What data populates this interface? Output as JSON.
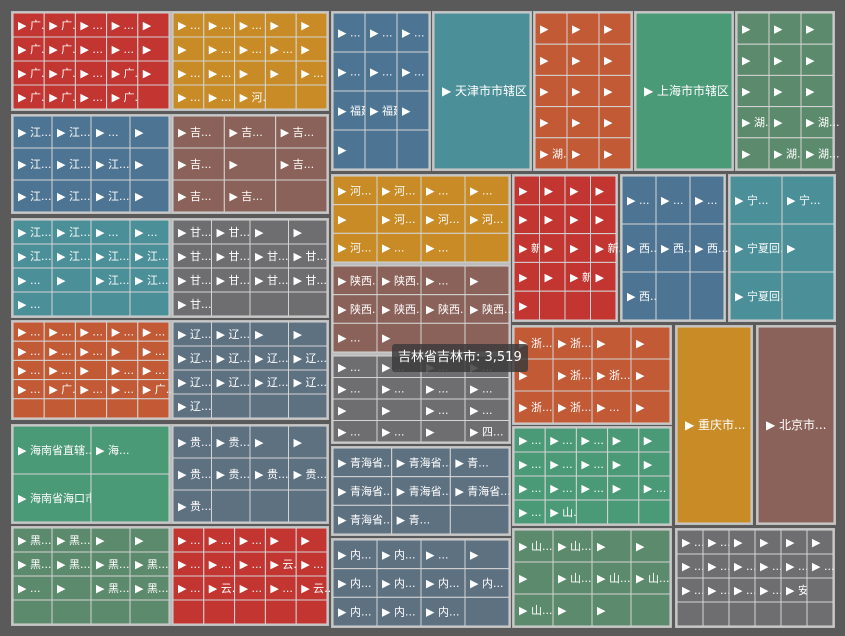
{
  "chart_data": {
    "type": "treemap",
    "tooltip": "吉林省吉林市: 3,519",
    "colors": {
      "red": "#c23531",
      "gold": "#c98b25",
      "blue": "#4d7493",
      "teal": "#4b8f98",
      "green": "#4b9a77",
      "sage": "#5c8a6c",
      "orange": "#c25a35",
      "brown": "#8a6259",
      "grey": "#6e6e70",
      "slate": "#5e7181"
    },
    "regions": [
      {
        "color": "red",
        "labels": [
          "▶ 广...",
          "▶ 广...",
          "▶ ...",
          "▶ ...",
          "▶",
          "▶ 广...",
          "▶ 广...",
          "▶ ...",
          "▶ ...",
          "▶",
          "▶ 广...",
          "▶ 广...",
          "▶ ...",
          "▶ 广...",
          "▶",
          "▶ 广...",
          "▶ 广...",
          "▶ ...",
          "▶ 广..."
        ]
      },
      {
        "color": "gold",
        "labels": [
          "▶ ...",
          "▶ ...",
          "▶ ...",
          "▶",
          "▶",
          "▶",
          "▶ ...",
          "▶ ...",
          "▶ ...",
          "▶",
          "▶ ...",
          "▶ ...",
          "▶",
          "▶",
          "▶ ...",
          "▶ ...",
          "▶ ...",
          "▶ 河..."
        ]
      },
      {
        "color": "blue",
        "labels": [
          "▶ ...",
          "▶ ...",
          "▶ ...",
          "▶ ...",
          "▶ ...",
          "▶ ...",
          "▶ 福建...",
          "▶ 福建...",
          "▶",
          "▶"
        ]
      },
      {
        "color": "teal",
        "labels": [
          "▶ 天津市市辖区"
        ]
      },
      {
        "color": "orange",
        "labels": [
          "▶",
          "▶",
          "▶",
          "▶",
          "▶",
          "▶",
          "▶",
          "▶",
          "▶",
          "▶",
          "▶",
          "▶",
          "▶ 湖...",
          "▶",
          "▶",
          "▶ 湖...",
          "▶",
          "▶",
          "▶ 湖...",
          "▶ 湖..."
        ]
      },
      {
        "color": "green",
        "labels": [
          "▶ 上海市市辖区"
        ]
      },
      {
        "color": "sage",
        "labels": [
          "▶",
          "▶",
          "▶",
          "▶",
          "▶",
          "▶",
          "▶",
          "▶",
          "▶",
          "▶ 湖...",
          "▶",
          "▶ 湖...",
          "▶",
          "▶ 湖...",
          "▶ 湖..."
        ]
      },
      {
        "color": "blue",
        "labels": [
          "▶ 江...",
          "▶ 江...",
          "▶ ...",
          "▶",
          "▶ 江...",
          "▶ 江...",
          "▶ 江...",
          "▶",
          "▶ 江...",
          "▶ 江...",
          "▶ 江...",
          "▶"
        ]
      },
      {
        "color": "brown",
        "labels": [
          "▶ 吉...",
          "▶ 吉...",
          "▶ 吉...",
          "▶ 吉...",
          "▶",
          "▶ 吉...",
          "▶ 吉...",
          "▶ 吉..."
        ]
      },
      {
        "color": "gold",
        "labels": [
          "▶ 河...",
          "▶ 河...",
          "▶ ...",
          "▶ ...",
          "▶",
          "▶ 河...",
          "▶ 河...",
          "▶ 河...",
          "▶ 河...",
          "▶ ...",
          "▶ ..."
        ]
      },
      {
        "color": "red",
        "labels": [
          "▶",
          "▶",
          "▶",
          "▶",
          "▶",
          "▶",
          "▶",
          "▶",
          "▶ 新...",
          "▶",
          "▶",
          "▶ 新...",
          "▶",
          "▶",
          "▶ 新...",
          "▶",
          "▶"
        ]
      },
      {
        "color": "blue",
        "labels": [
          "▶ ...",
          "▶ ...",
          "▶ ...",
          "▶ 西...",
          "▶ 西...",
          "▶ 西...",
          "▶ 西..."
        ]
      },
      {
        "color": "teal",
        "labels": [
          "▶ 宁...",
          "▶ 宁...",
          "▶ 宁夏回...",
          "▶",
          "▶ 宁夏回..."
        ]
      },
      {
        "color": "teal",
        "labels": [
          "▶ 江...",
          "▶ 江...",
          "▶ ...",
          "▶ ...",
          "▶ 江...",
          "▶ 江...",
          "▶ 江...",
          "▶ 江...",
          "▶ ...",
          "▶",
          "▶ 江...",
          "▶ 江...",
          "▶ ..."
        ]
      },
      {
        "color": "grey",
        "labels": [
          "▶ 甘...",
          "▶ 甘...",
          "▶",
          "▶",
          "▶ 甘...",
          "▶ 甘...",
          "▶ 甘...",
          "▶ 甘...",
          "▶ 甘...",
          "▶ 甘...",
          "▶ 甘...",
          "▶ 甘...",
          "▶ 甘..."
        ]
      },
      {
        "color": "brown",
        "labels": [
          "▶ 陕西...",
          "▶ 陕西...",
          "▶ ...",
          "▶",
          "▶ 陕西...",
          "▶ 陕西...",
          "▶ 陕西...",
          "▶ 陕西...",
          "▶ ...",
          "▶"
        ]
      },
      {
        "color": "grey",
        "labels": [
          "▶ ...",
          "▶ ...",
          "▶ ...",
          "▶ ...",
          "▶ ...",
          "▶ ...",
          "▶ ...",
          "▶ ...",
          "▶",
          "▶",
          "▶ ...",
          "▶ ...",
          "▶ ...",
          "▶ ...",
          "▶",
          "▶ 四..."
        ]
      },
      {
        "color": "orange",
        "labels": [
          "▶ 浙...",
          "▶ 浙...",
          "▶",
          "▶",
          "▶",
          "▶ 浙...",
          "▶ 浙...",
          "▶",
          "▶ 浙...",
          "▶ 浙...",
          "▶ ...",
          "▶"
        ]
      },
      {
        "color": "gold",
        "labels": [
          "▶ 重庆市..."
        ]
      },
      {
        "color": "brown",
        "labels": [
          "▶ 北京市..."
        ]
      },
      {
        "color": "orange",
        "labels": [
          "▶ ...",
          "▶ ...",
          "▶ ...",
          "▶ ...",
          "▶ ...",
          "▶ ...",
          "▶ ...",
          "▶ ...",
          "▶",
          "▶ ...",
          "▶ ...",
          "▶ ...",
          "▶",
          "▶ ...",
          "▶ ...",
          "▶ ...",
          "▶ 广...",
          "▶ ...",
          "▶ ...",
          "▶ 广..."
        ]
      },
      {
        "color": "slate",
        "labels": [
          "▶ 辽...",
          "▶ 辽...",
          "▶",
          "▶",
          "▶ 辽...",
          "▶ 辽...",
          "▶ 辽...",
          "▶ 辽...",
          "▶ 辽...",
          "▶ 辽...",
          "▶ 辽...",
          "▶ 辽...",
          "▶ 辽..."
        ]
      },
      {
        "color": "green",
        "labels": [
          "▶ 海南省直辖...",
          "▶ 海...",
          "▶ 海南省海口市"
        ]
      },
      {
        "color": "slate",
        "labels": [
          "▶ 贵...",
          "▶ 贵...",
          "▶",
          "▶",
          "▶ 贵...",
          "▶ 贵...",
          "▶ 贵...",
          "▶ 贵...",
          "▶ 贵..."
        ]
      },
      {
        "color": "slate",
        "labels": [
          "▶ 青海省...",
          "▶ 青海省...",
          "▶ 青...",
          "▶ 青海省...",
          "▶ 青海省...",
          "▶ 青海省...",
          "▶ 青海省...",
          "▶ 青..."
        ]
      },
      {
        "color": "green",
        "labels": [
          "▶ ...",
          "▶ ...",
          "▶ ...",
          "▶",
          "▶",
          "▶ ...",
          "▶ ...",
          "▶ ...",
          "▶",
          "▶",
          "▶ ...",
          "▶ ...",
          "▶ ...",
          "▶",
          "▶ ...",
          "▶ ...",
          "▶ 山..."
        ]
      },
      {
        "color": "sage",
        "labels": [
          "▶ 黑...",
          "▶ 黑...",
          "▶",
          "▶",
          "▶ 黑...",
          "▶ 黑...",
          "▶ 黑...",
          "▶ 黑...",
          "▶ ...",
          "▶",
          "▶ 黑...",
          "▶ 黑..."
        ]
      },
      {
        "color": "red",
        "labels": [
          "▶ ...",
          "▶ ...",
          "▶ ...",
          "▶",
          "▶",
          "▶ ...",
          "▶ ...",
          "▶ ...",
          "▶ 云...",
          "▶ ...",
          "▶ ...",
          "▶ 云...",
          "▶ ...",
          "▶ ...",
          "▶ 云..."
        ]
      },
      {
        "color": "slate",
        "labels": [
          "▶ 内...",
          "▶ 内...",
          "▶ ...",
          "▶",
          "▶ 内...",
          "▶ 内...",
          "▶ 内...",
          "▶ 内...",
          "▶ 内...",
          "▶ 内...",
          "▶ 内..."
        ]
      },
      {
        "color": "sage",
        "labels": [
          "▶ 山...",
          "▶ 山...",
          "▶",
          "▶",
          "▶",
          "▶ 山...",
          "▶ 山...",
          "▶ 山...",
          "▶ 山...",
          "▶",
          "▶"
        ]
      },
      {
        "color": "grey",
        "labels": [
          "▶ ...",
          "▶ ...",
          "▶",
          "▶",
          "▶",
          "▶",
          "▶ ...",
          "▶ ...",
          "▶ ...",
          "▶ ...",
          "▶ ...",
          "▶ ...",
          "▶ ...",
          "▶ ...",
          "▶ ...",
          "▶ ...",
          "▶ 安..."
        ]
      }
    ]
  }
}
